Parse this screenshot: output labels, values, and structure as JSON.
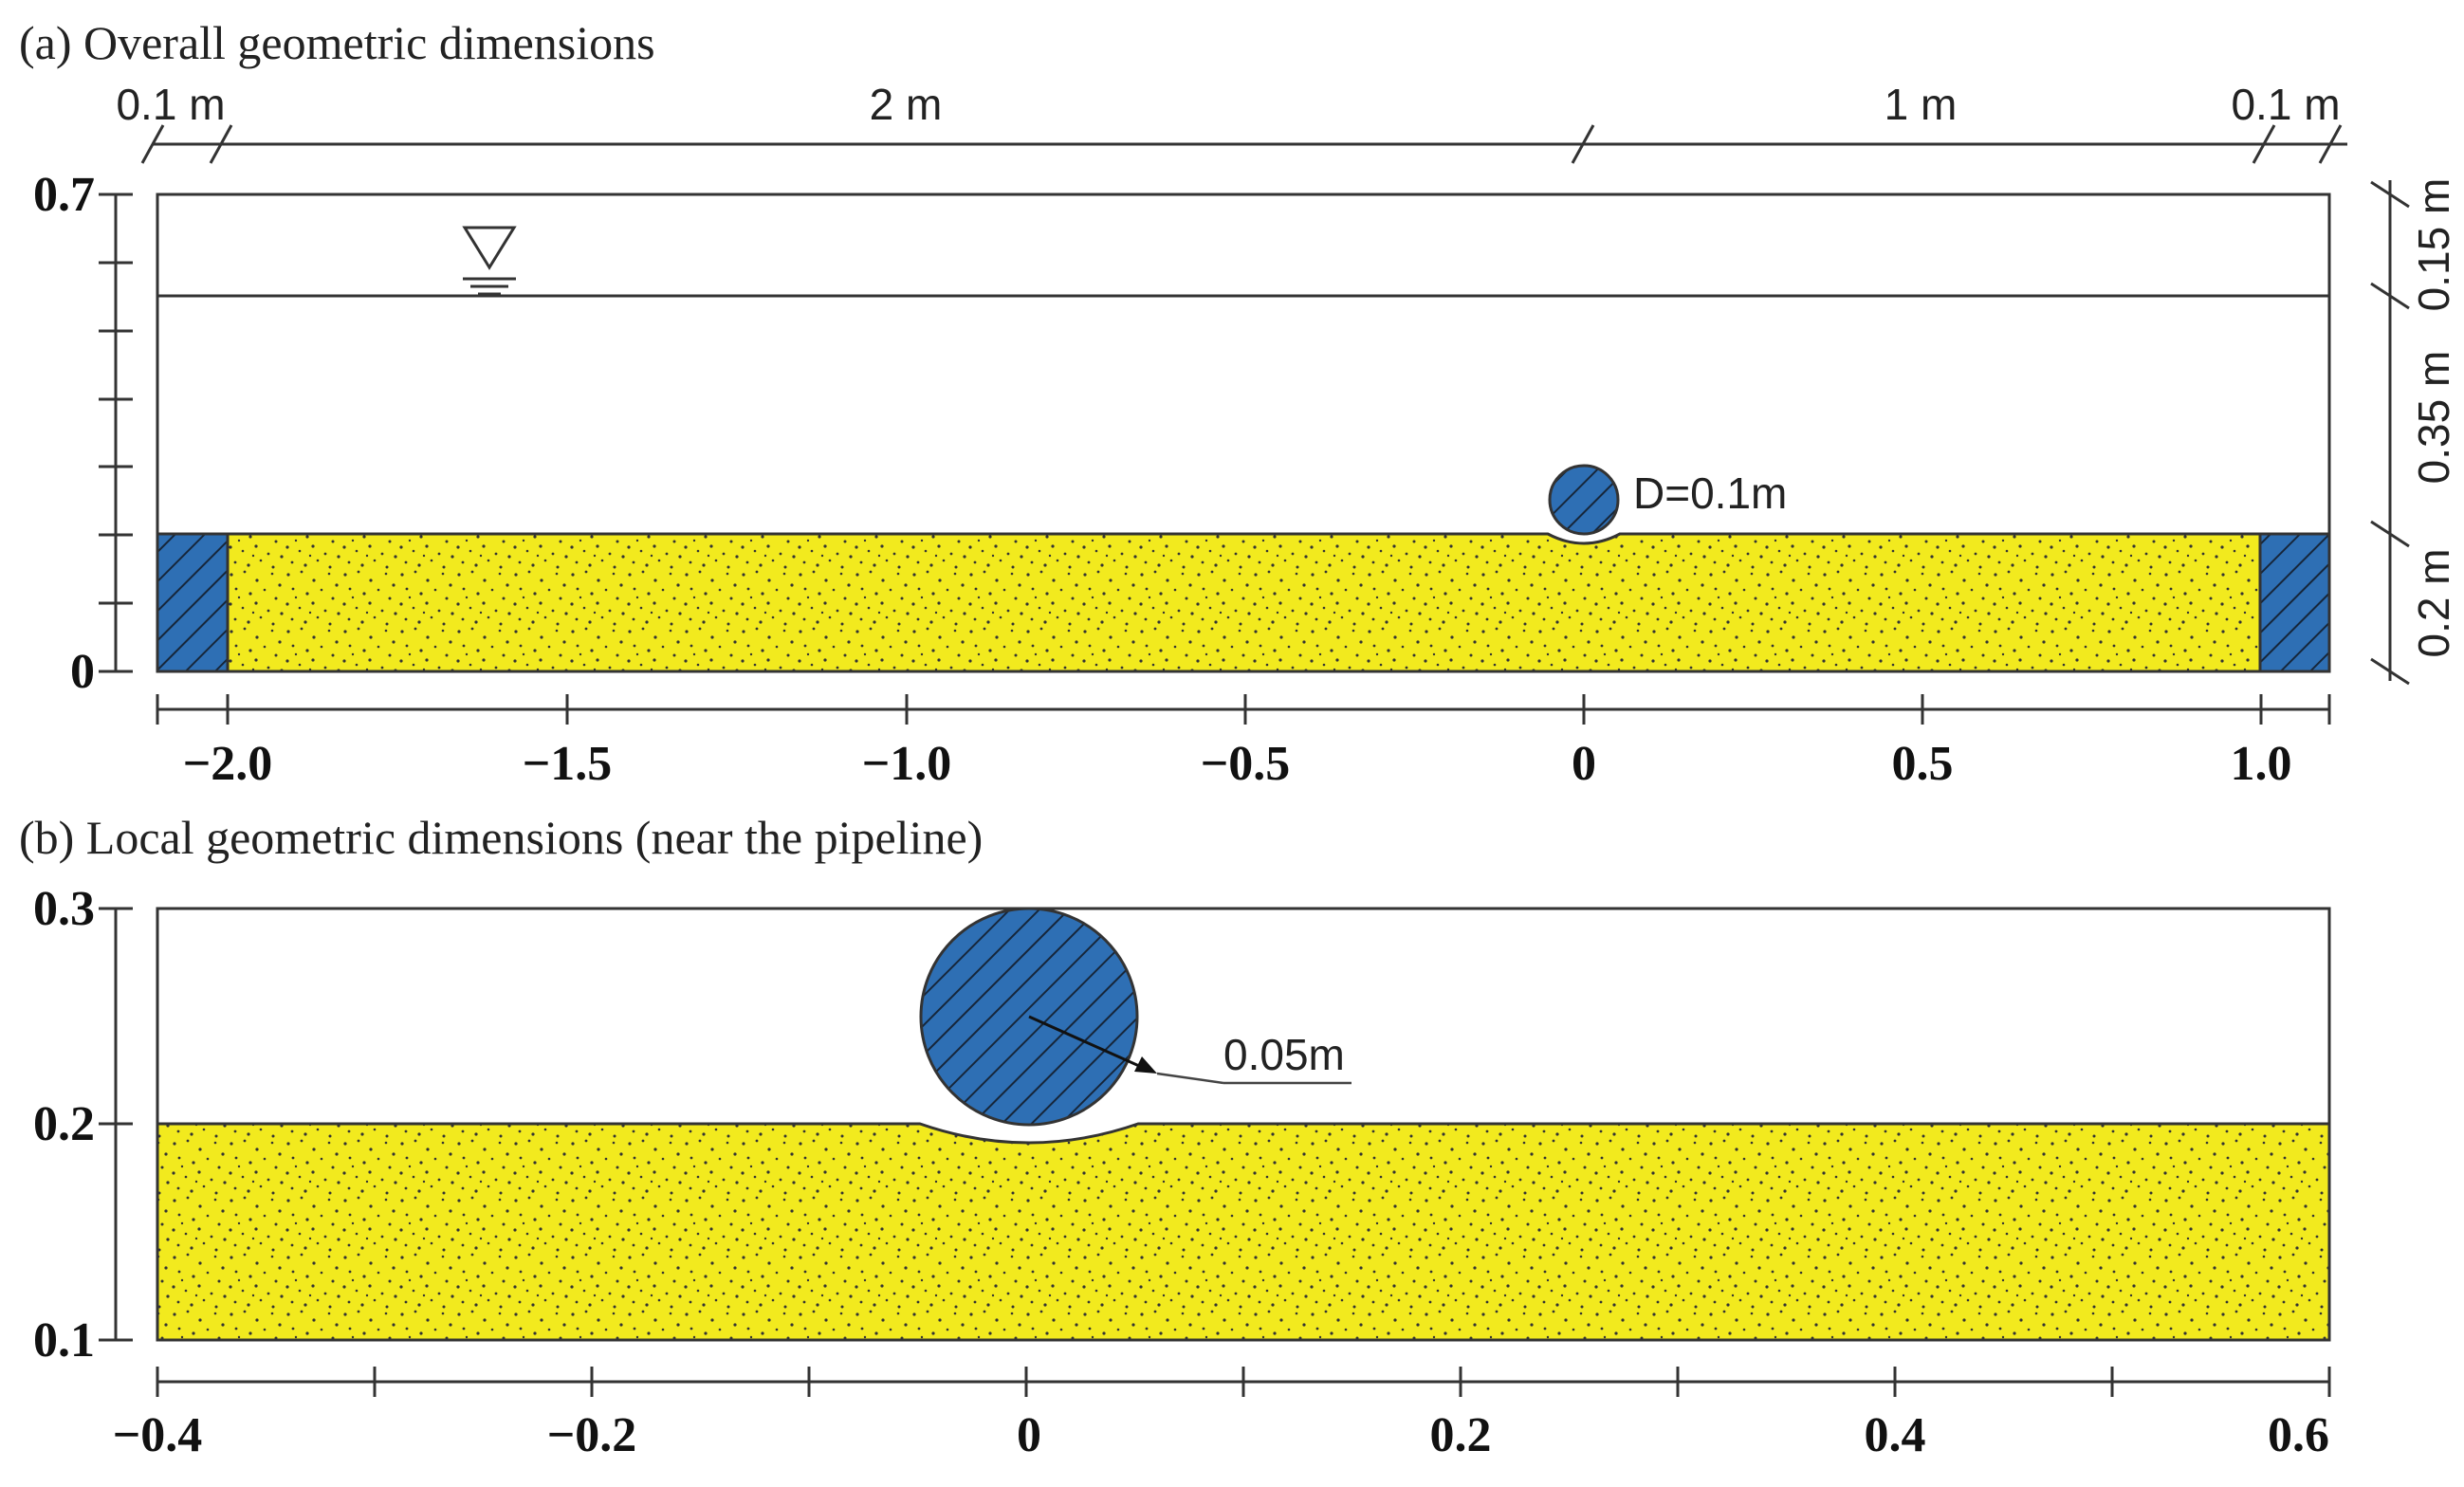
{
  "panel_a": {
    "title": "(a) Overall geometric dimensions",
    "top_dims": [
      "0.1 m",
      "2 m",
      "1 m",
      "0.1 m"
    ],
    "right_dims": [
      "0.15 m",
      "0.35 m",
      "0.2 m"
    ],
    "pipe_label": "D=0.1m",
    "y_axis": {
      "range": [
        0,
        0.7
      ],
      "labels": [
        "0.7",
        "0"
      ]
    },
    "x_axis": {
      "range": [
        -2.1,
        1.1
      ],
      "labels": [
        "−2.0",
        "−1.5",
        "−1.0",
        "−0.5",
        "0",
        "0.5",
        "1.0"
      ]
    }
  },
  "panel_b": {
    "title": "(b) Local geometric dimensions (near the pipeline)",
    "radius_label": "0.05m",
    "y_axis": {
      "range": [
        0.1,
        0.3
      ],
      "labels": [
        "0.3",
        "0.2",
        "0.1"
      ]
    },
    "x_axis": {
      "range": [
        -0.4,
        0.6
      ],
      "labels": [
        "−0.4",
        "−0.2",
        "0",
        "0.2",
        "0.4",
        "0.6"
      ]
    }
  },
  "colors": {
    "sand": "#f2ea1e",
    "pipe": "#2e6fb4",
    "outline": "#333333",
    "hatch": "#1b2a3a"
  },
  "icons": {
    "water_level": "water-level-triangle-icon"
  }
}
